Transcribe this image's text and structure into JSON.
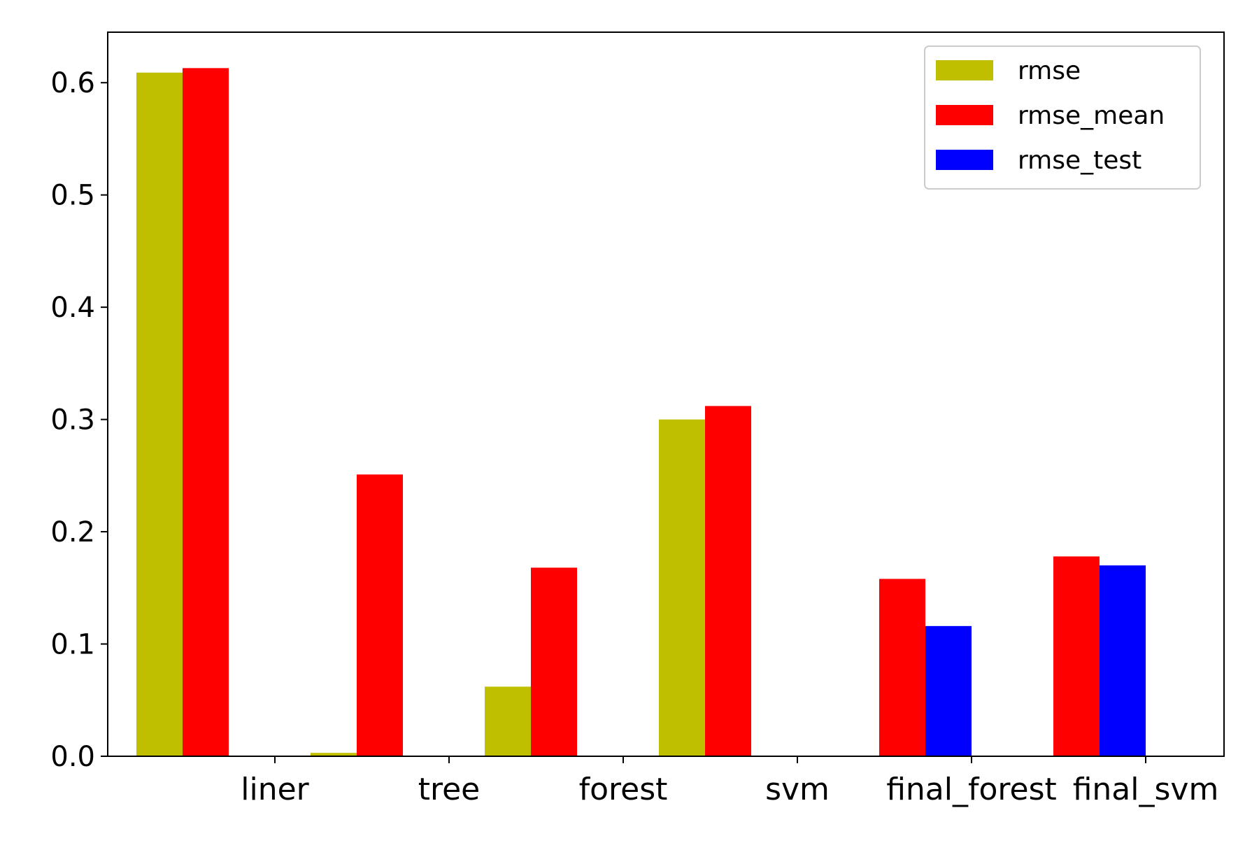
{
  "chart_data": {
    "type": "bar",
    "title": "",
    "xlabel": "",
    "ylabel": "",
    "categories": [
      "liner",
      "tree",
      "forest",
      "svm",
      "final_forest",
      "final_svm"
    ],
    "series": [
      {
        "name": "rmse",
        "color": "#bfbf00",
        "values": [
          0.609,
          0.003,
          0.062,
          0.3,
          null,
          null
        ]
      },
      {
        "name": "rmse_mean",
        "color": "#ff0000",
        "values": [
          0.613,
          0.251,
          0.168,
          0.312,
          0.158,
          0.178
        ]
      },
      {
        "name": "rmse_test",
        "color": "#0000ff",
        "values": [
          null,
          null,
          null,
          null,
          0.116,
          0.17
        ]
      }
    ],
    "ylim": [
      0,
      0.645
    ],
    "yticks": [
      0.0,
      0.1,
      0.2,
      0.3,
      0.4,
      0.5,
      0.6
    ],
    "ytick_labels": [
      "0.0",
      "0.1",
      "0.2",
      "0.3",
      "0.4",
      "0.5",
      "0.6"
    ],
    "grid": false,
    "legend_position": "top-right"
  }
}
